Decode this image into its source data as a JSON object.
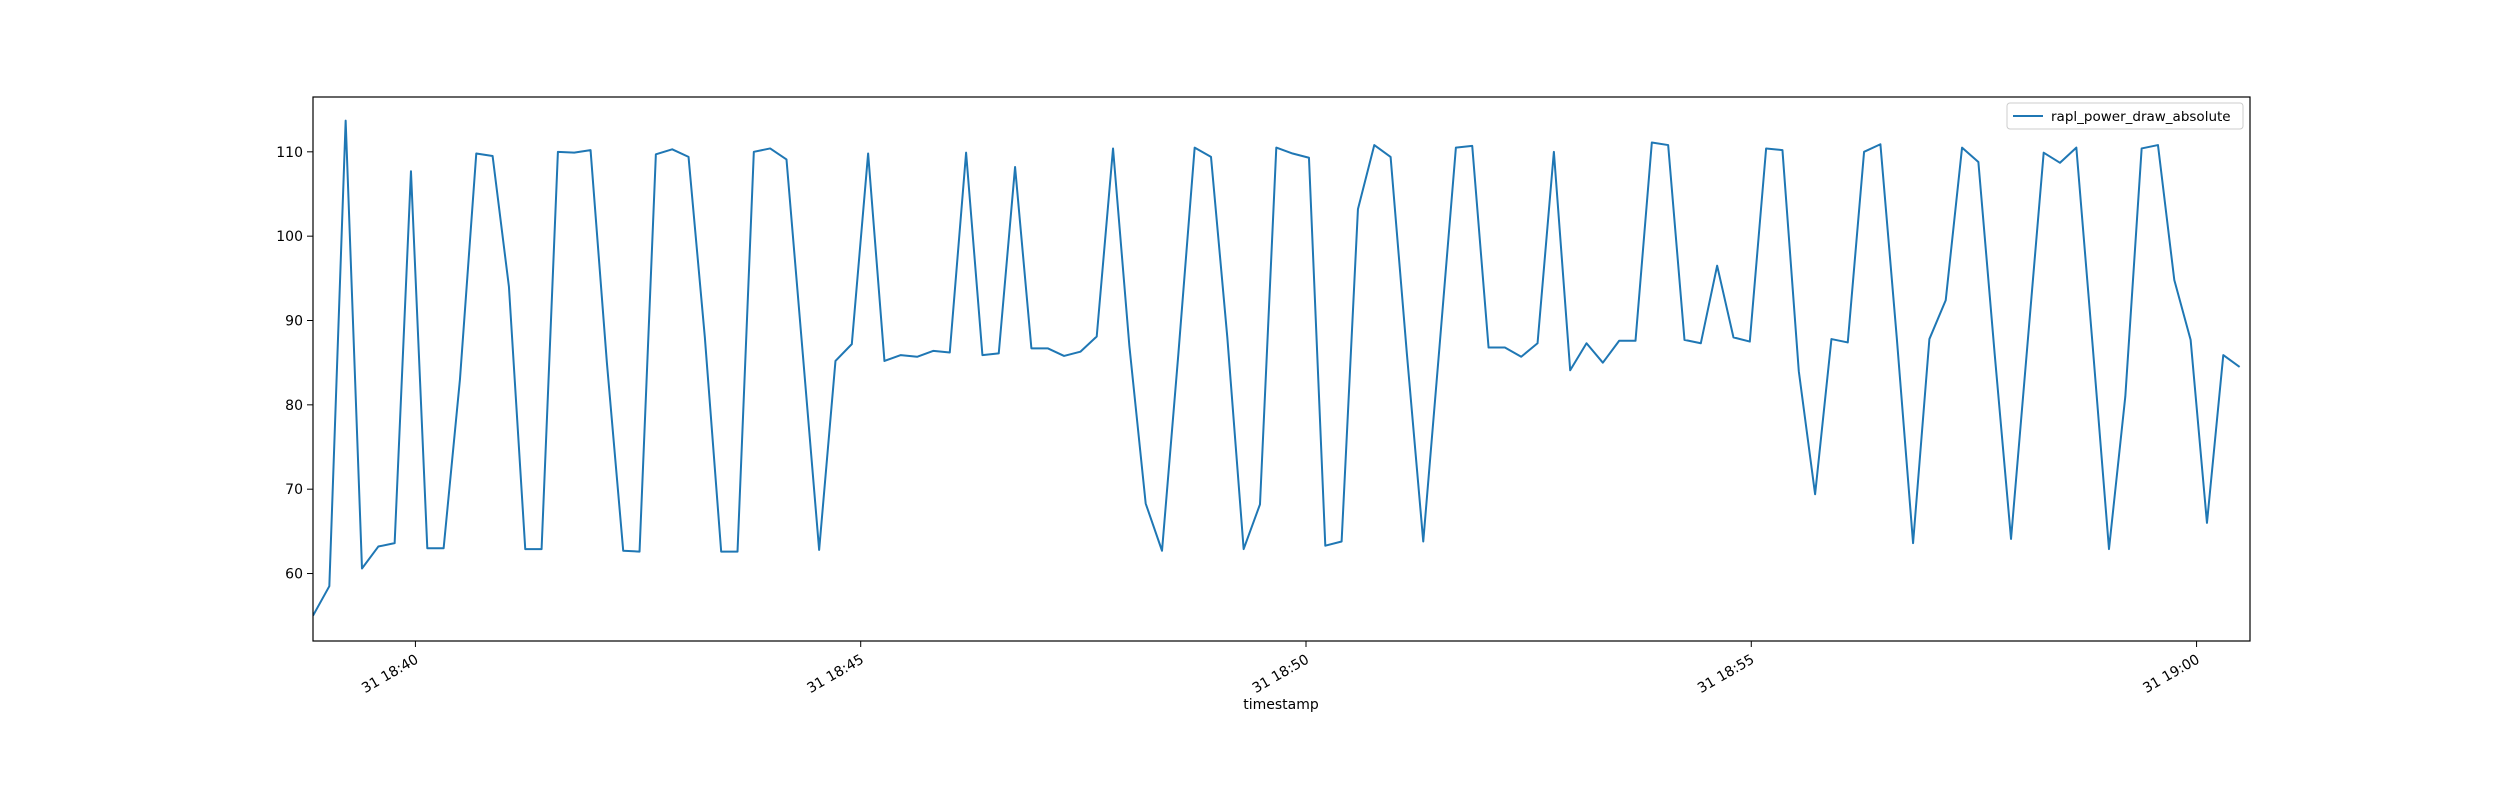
{
  "chart_data": {
    "type": "line",
    "title": "",
    "xlabel": "timestamp",
    "ylabel": "",
    "x_unit": "minutes (time of day, day 31)",
    "xlim": [
      "18:38.85",
      "19:00.6"
    ],
    "ylim": [
      52,
      116.5
    ],
    "x_ticks": [
      {
        "value": "18:40",
        "label": "31 18:40"
      },
      {
        "value": "18:45",
        "label": "31 18:45"
      },
      {
        "value": "18:50",
        "label": "31 18:50"
      },
      {
        "value": "18:55",
        "label": "31 18:55"
      },
      {
        "value": "19:00",
        "label": "31 19:00"
      }
    ],
    "y_ticks": [
      60,
      70,
      80,
      90,
      100,
      110
    ],
    "legend": {
      "position": "upper right",
      "entries": [
        "rapl_power_draw_absolute"
      ]
    },
    "grid": false,
    "series": [
      {
        "name": "rapl_power_draw_absolute",
        "color": "#1f77b4",
        "points": [
          [
            "18:38:51",
            55.0
          ],
          [
            "18:39:02",
            58.5
          ],
          [
            "18:39:13",
            113.7
          ],
          [
            "18:39:24",
            60.6
          ],
          [
            "18:39:35",
            63.2
          ],
          [
            "18:39:46",
            63.6
          ],
          [
            "18:39:57",
            107.7
          ],
          [
            "18:40:08",
            63.0
          ],
          [
            "18:40:19",
            63.0
          ],
          [
            "18:40:30",
            83.0
          ],
          [
            "18:40:41",
            109.8
          ],
          [
            "18:40:52",
            109.5
          ],
          [
            "18:41:03",
            94.0
          ],
          [
            "18:41:14",
            62.9
          ],
          [
            "18:41:25",
            62.9
          ],
          [
            "18:41:36",
            110.0
          ],
          [
            "18:41:47",
            109.9
          ],
          [
            "18:41:58",
            110.2
          ],
          [
            "18:42:09",
            85.0
          ],
          [
            "18:42:20",
            62.7
          ],
          [
            "18:42:31",
            62.6
          ],
          [
            "18:42:42",
            109.7
          ],
          [
            "18:42:53",
            110.3
          ],
          [
            "18:43:04",
            109.4
          ],
          [
            "18:43:15",
            88.0
          ],
          [
            "18:43:26",
            62.6
          ],
          [
            "18:43:37",
            62.6
          ],
          [
            "18:43:48",
            110.0
          ],
          [
            "18:43:59",
            110.4
          ],
          [
            "18:44:10",
            109.1
          ],
          [
            "18:44:21",
            86.0
          ],
          [
            "18:44:32",
            62.8
          ],
          [
            "18:44:43",
            85.2
          ],
          [
            "18:44:54",
            87.2
          ],
          [
            "18:45:05",
            109.8
          ],
          [
            "18:45:16",
            85.2
          ],
          [
            "18:45:27",
            85.9
          ],
          [
            "18:45:38",
            85.7
          ],
          [
            "18:45:49",
            86.4
          ],
          [
            "18:46:00",
            86.2
          ],
          [
            "18:46:11",
            109.9
          ],
          [
            "18:46:22",
            85.9
          ],
          [
            "18:46:33",
            86.1
          ],
          [
            "18:46:44",
            108.2
          ],
          [
            "18:46:55",
            86.7
          ],
          [
            "18:47:06",
            86.7
          ],
          [
            "18:47:17",
            85.8
          ],
          [
            "18:47:28",
            86.3
          ],
          [
            "18:47:39",
            88.1
          ],
          [
            "18:47:50",
            110.4
          ],
          [
            "18:48:01",
            87.0
          ],
          [
            "18:48:12",
            68.3
          ],
          [
            "18:48:23",
            62.7
          ],
          [
            "18:48:34",
            86.0
          ],
          [
            "18:48:45",
            110.5
          ],
          [
            "18:48:56",
            109.4
          ],
          [
            "18:49:07",
            88.0
          ],
          [
            "18:49:18",
            62.9
          ],
          [
            "18:49:29",
            68.2
          ],
          [
            "18:49:40",
            110.5
          ],
          [
            "18:49:51",
            109.8
          ],
          [
            "18:50:02",
            109.3
          ],
          [
            "18:50:13",
            63.3
          ],
          [
            "18:50:24",
            63.8
          ],
          [
            "18:50:35",
            103.2
          ],
          [
            "18:50:46",
            110.8
          ],
          [
            "18:50:57",
            109.4
          ],
          [
            "18:51:08",
            86.0
          ],
          [
            "18:51:19",
            63.8
          ],
          [
            "18:51:30",
            87.0
          ],
          [
            "18:51:41",
            110.5
          ],
          [
            "18:51:52",
            110.7
          ],
          [
            "18:52:03",
            86.8
          ],
          [
            "18:52:14",
            86.8
          ],
          [
            "18:52:25",
            85.7
          ],
          [
            "18:52:36",
            87.3
          ],
          [
            "18:52:47",
            110.0
          ],
          [
            "18:52:58",
            84.1
          ],
          [
            "18:53:09",
            87.3
          ],
          [
            "18:53:20",
            85.0
          ],
          [
            "18:53:31",
            87.6
          ],
          [
            "18:53:42",
            87.6
          ],
          [
            "18:53:53",
            111.1
          ],
          [
            "18:54:04",
            110.8
          ],
          [
            "18:54:15",
            87.7
          ],
          [
            "18:54:26",
            87.3
          ],
          [
            "18:54:37",
            96.5
          ],
          [
            "18:54:48",
            88.0
          ],
          [
            "18:54:59",
            87.5
          ],
          [
            "18:55:10",
            110.4
          ],
          [
            "18:55:21",
            110.2
          ],
          [
            "18:55:32",
            84.0
          ],
          [
            "18:55:43",
            69.4
          ],
          [
            "18:55:54",
            87.8
          ],
          [
            "18:56:05",
            87.4
          ],
          [
            "18:56:16",
            110.0
          ],
          [
            "18:56:27",
            110.9
          ],
          [
            "18:56:38",
            88.0
          ],
          [
            "18:56:49",
            63.6
          ],
          [
            "18:57:00",
            87.8
          ],
          [
            "18:57:11",
            92.4
          ],
          [
            "18:57:22",
            110.5
          ],
          [
            "18:57:33",
            108.8
          ],
          [
            "18:57:44",
            86.0
          ],
          [
            "18:57:55",
            64.1
          ],
          [
            "18:58:06",
            87.0
          ],
          [
            "18:58:17",
            109.9
          ],
          [
            "18:58:28",
            108.7
          ],
          [
            "18:58:39",
            110.5
          ],
          [
            "18:58:50",
            87.0
          ],
          [
            "18:59:01",
            62.9
          ],
          [
            "18:59:12",
            81.0
          ],
          [
            "18:59:23",
            110.4
          ],
          [
            "18:59:34",
            110.8
          ],
          [
            "18:59:45",
            94.8
          ],
          [
            "18:59:56",
            87.7
          ],
          [
            "19:00:07",
            66.0
          ],
          [
            "19:00:18",
            85.9
          ],
          [
            "19:00:29",
            84.5
          ]
        ]
      }
    ]
  }
}
